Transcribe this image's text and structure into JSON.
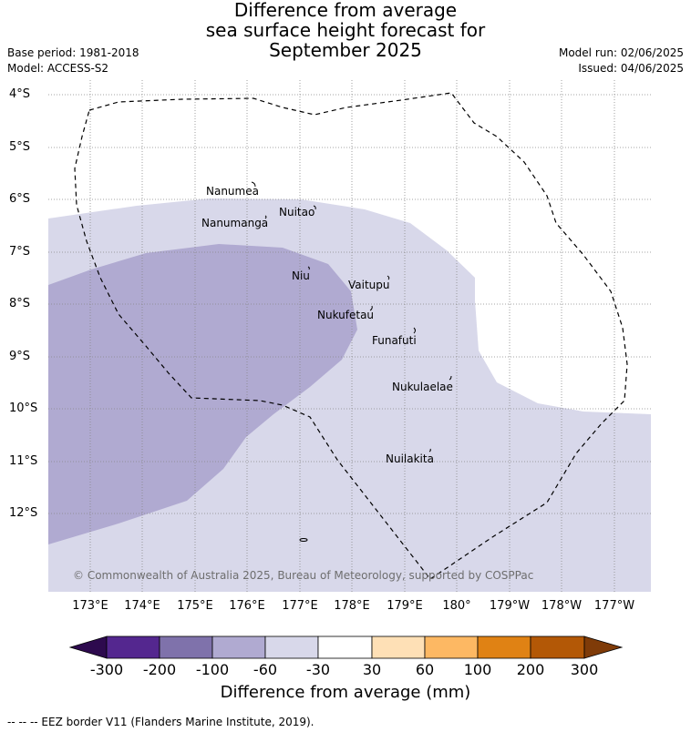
{
  "title": {
    "line1": "Difference from average",
    "line2": "sea surface height forecast for",
    "line3": "September 2025"
  },
  "meta_left": {
    "base_period": "Base period: 1981-2018",
    "model": "Model: ACCESS-S2"
  },
  "meta_right": {
    "model_run": "Model run: 02/06/2025",
    "issued": "Issued: 04/06/2025"
  },
  "lat_labels": [
    "4°S",
    "5°S",
    "6°S",
    "7°S",
    "8°S",
    "9°S",
    "10°S",
    "11°S",
    "12°S"
  ],
  "lon_labels": [
    "173°E",
    "174°E",
    "175°E",
    "176°E",
    "177°E",
    "178°E",
    "179°E",
    "180°",
    "179°W",
    "178°W",
    "177°W"
  ],
  "places": [
    "Nanumea",
    "Nuitao",
    "Nanumanga",
    "Niu",
    "Vaitupu",
    "Nukufetau",
    "Funafuti",
    "Nukulaelae",
    "Nuilakita"
  ],
  "copyright": "© Commonwealth of Australia 2025, Bureau of Meteorology, supported by COSPPac",
  "colorbar": {
    "title": "Difference from average (mm)",
    "labels": [
      "-300",
      "-200",
      "-100",
      "-60",
      "-30",
      "30",
      "60",
      "100",
      "200",
      "300"
    ],
    "colors": {
      "below": "#2d0a4e",
      "bins": [
        "#54278f",
        "#7f72ab",
        "#b0aad1",
        "#d8d8ea",
        "#ffffff",
        "#fee0b6",
        "#fdb863",
        "#e08214",
        "#b35806"
      ],
      "above": "#7f3b08"
    }
  },
  "footer": "--  --  -- EEZ border V11 (Flanders Marine Institute, 2019)."
}
